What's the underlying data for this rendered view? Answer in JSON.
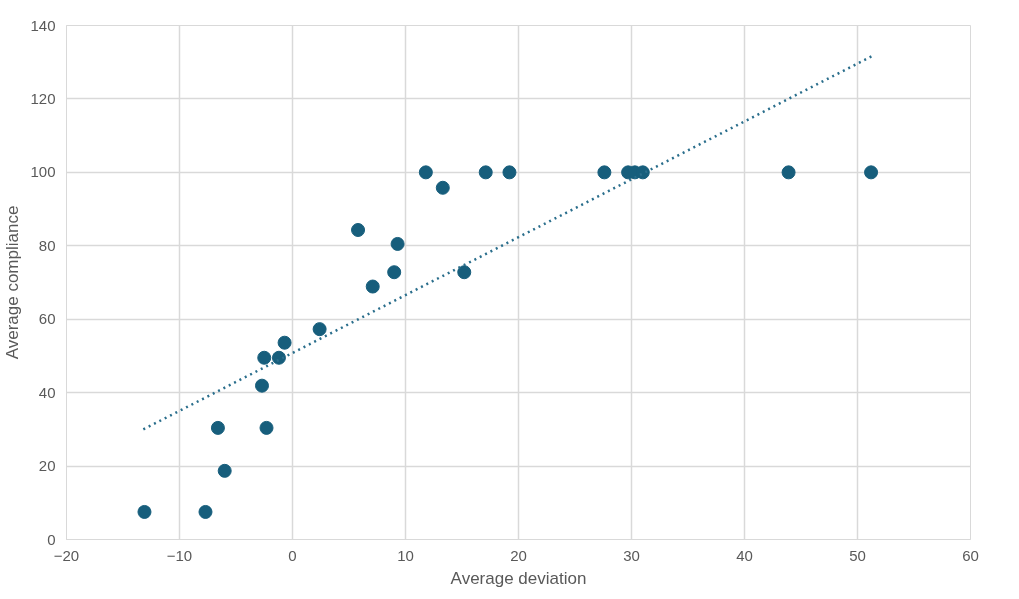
{
  "chart_data": {
    "type": "scatter",
    "xlabel": "Average deviation",
    "ylabel": "Average compliance",
    "xlim": [
      -20,
      60
    ],
    "ylim": [
      0,
      140
    ],
    "xticks": [
      -20,
      -10,
      0,
      10,
      20,
      30,
      40,
      50,
      60
    ],
    "yticks": [
      0,
      20,
      40,
      60,
      80,
      100,
      120,
      140
    ],
    "grid": true,
    "series": [
      {
        "marker": "circle",
        "color": "#175e7c",
        "x": [
          -13.1,
          -7.7,
          -6.0,
          -6.6,
          -2.3,
          -2.7,
          -2.5,
          -1.2,
          -0.7,
          2.4,
          5.8,
          9.3,
          9.0,
          7.1,
          15.2,
          11.8,
          13.3,
          17.1,
          19.2,
          27.6,
          29.7,
          30.3,
          31.0,
          43.9,
          51.2
        ],
        "values": [
          7.5,
          7.5,
          18.7,
          30.4,
          30.4,
          41.9,
          49.5,
          49.5,
          53.6,
          57.3,
          84.3,
          80.5,
          72.8,
          68.9,
          72.8,
          100,
          95.8,
          100,
          100,
          100,
          100,
          100,
          100,
          100,
          100
        ]
      },
      {
        "type": "line",
        "line_style": "dotted",
        "color": "#2a6e8c",
        "x": [
          -13.2,
          51.5
        ],
        "values": [
          30,
          132
        ]
      }
    ]
  }
}
